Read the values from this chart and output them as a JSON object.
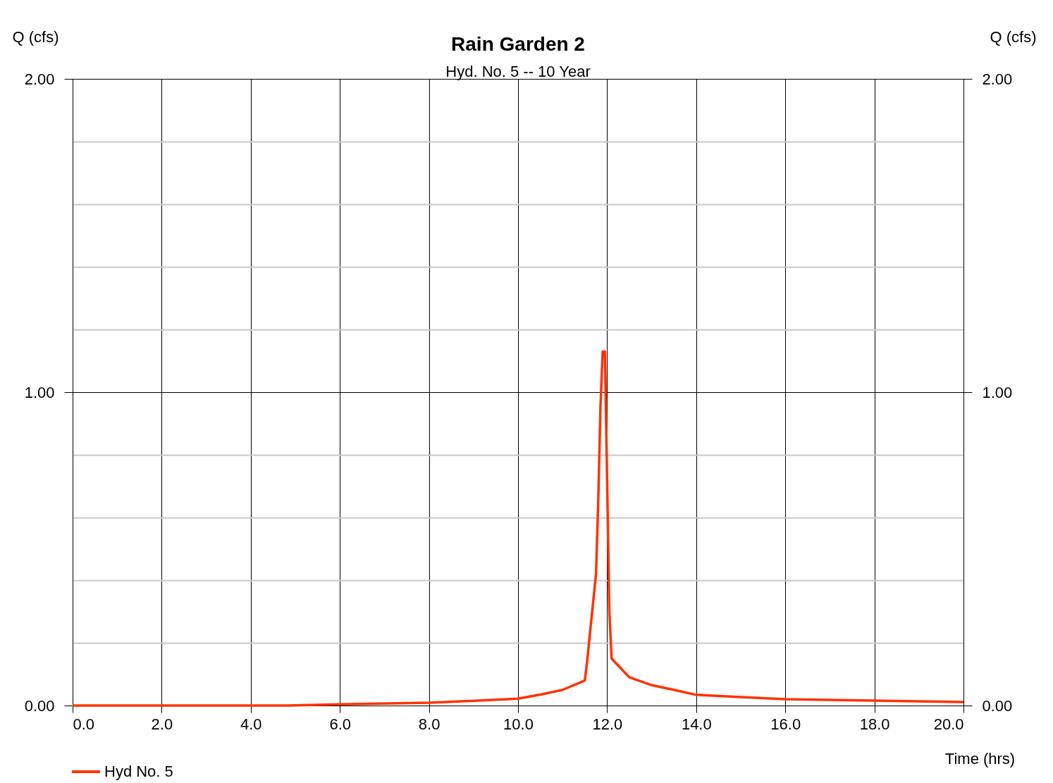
{
  "chart_data": {
    "type": "line",
    "title": "Rain Garden 2",
    "subtitle": "Hyd. No. 5 -- 10 Year",
    "xlabel": "Time (hrs)",
    "ylabel": "Q (cfs)",
    "y2label": "Q (cfs)",
    "series": [
      {
        "name": "Hyd No. 5",
        "color": "#ff3300",
        "x": [
          0,
          4.8,
          6,
          8,
          9,
          10,
          10.5,
          11,
          11.5,
          11.55,
          11.75,
          11.8,
          11.85,
          11.9,
          11.95,
          12.05,
          12.1,
          12.5,
          13,
          13.5,
          14,
          16,
          18,
          20
        ],
        "values": [
          0,
          0,
          0.004,
          0.009,
          0.015,
          0.022,
          0.035,
          0.05,
          0.08,
          0.14,
          0.42,
          0.65,
          0.95,
          1.13,
          1.13,
          0.3,
          0.15,
          0.09,
          0.065,
          0.05,
          0.034,
          0.02,
          0.016,
          0.011
        ]
      }
    ],
    "xlim": [
      0,
      20
    ],
    "ylim": [
      0,
      2
    ],
    "y2lim": [
      0,
      2
    ],
    "xticks": [
      {
        "value": 0,
        "label": "0.0"
      },
      {
        "value": 2,
        "label": "2.0"
      },
      {
        "value": 4,
        "label": "4.0"
      },
      {
        "value": 6,
        "label": "6.0"
      },
      {
        "value": 8,
        "label": "8.0"
      },
      {
        "value": 10,
        "label": "10.0"
      },
      {
        "value": 12,
        "label": "12.0"
      },
      {
        "value": 14,
        "label": "14.0"
      },
      {
        "value": 16,
        "label": "16.0"
      },
      {
        "value": 18,
        "label": "18.0"
      },
      {
        "value": 20,
        "label": "20.0"
      }
    ],
    "yticks": [
      {
        "value": 0,
        "label": "0.00"
      },
      {
        "value": 0.2,
        "label": null
      },
      {
        "value": 0.4,
        "label": null
      },
      {
        "value": 0.6,
        "label": null
      },
      {
        "value": 0.8,
        "label": null
      },
      {
        "value": 1,
        "label": "1.00"
      },
      {
        "value": 1.2,
        "label": null
      },
      {
        "value": 1.4,
        "label": null
      },
      {
        "value": 1.6,
        "label": null
      },
      {
        "value": 1.8,
        "label": null
      },
      {
        "value": 2,
        "label": "2.00"
      }
    ],
    "y2ticks": [
      {
        "value": 0,
        "label": "0.00"
      },
      {
        "value": 1,
        "label": "1.00"
      },
      {
        "value": 2,
        "label": "2.00"
      }
    ],
    "grid": true,
    "legend": "bottom left",
    "line_style": "solid"
  }
}
